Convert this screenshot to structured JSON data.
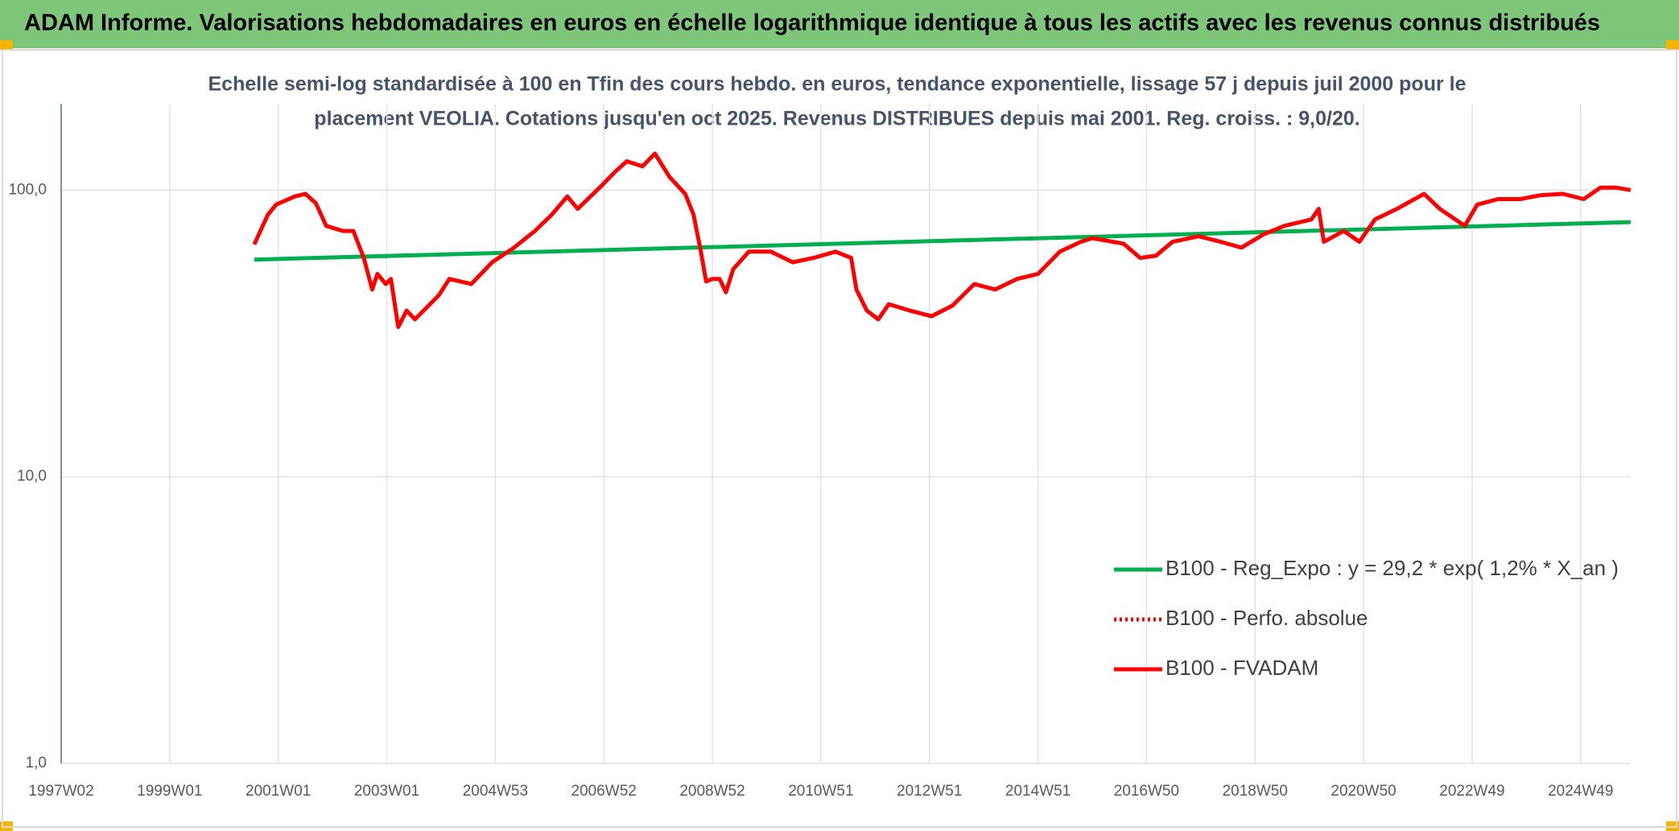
{
  "chart_data": {
    "type": "line",
    "title": "ADAM Informe. Valorisations hebdomadaires en euros en échelle logarithmique identique à tous les actifs avec les revenus connus distribués",
    "subtitle": [
      "Echelle semi-log standardisée à 100 en Tfin des cours hebdo. en euros, tendance exponentielle, lissage 57 j depuis juil 2000 pour le",
      "placement VEOLIA. Cotations jusqu'en oct 2025. Revenus DISTRIBUES depuis mai 2001. Reg. croiss. : 9,0/20."
    ],
    "yscale": "log",
    "ylim": [
      1,
      200
    ],
    "yticks": [
      {
        "value": 1,
        "label": "1,0"
      },
      {
        "value": 10,
        "label": "10,0"
      },
      {
        "value": 100,
        "label": "100,0"
      }
    ],
    "xlim": [
      0,
      1504
    ],
    "xticks": [
      {
        "value": 0,
        "label": "1997W02"
      },
      {
        "value": 104,
        "label": "1999W01"
      },
      {
        "value": 208,
        "label": "2001W01"
      },
      {
        "value": 312,
        "label": "2003W01"
      },
      {
        "value": 416,
        "label": "2004W53"
      },
      {
        "value": 520,
        "label": "2006W52"
      },
      {
        "value": 624,
        "label": "2008W52"
      },
      {
        "value": 728,
        "label": "2010W51"
      },
      {
        "value": 832,
        "label": "2012W51"
      },
      {
        "value": 936,
        "label": "2014W51"
      },
      {
        "value": 1040,
        "label": "2016W50"
      },
      {
        "value": 1144,
        "label": "2018W50"
      },
      {
        "value": 1248,
        "label": "2020W50"
      },
      {
        "value": 1352,
        "label": "2022W49"
      },
      {
        "value": 1456,
        "label": "2024W49"
      }
    ],
    "grid": true,
    "legend": "lower right",
    "series": [
      {
        "name": "B100 - Reg_Expo : y = 29,2 * exp( 1,2% *  X_an )",
        "color": "#00b050",
        "style": "solid",
        "x": [
          185,
          1504
        ],
        "values": [
          57.2,
          77.3
        ]
      },
      {
        "name": "B100 - Perfo. absolue",
        "color": "#ff0000",
        "style": "dotted",
        "x": [
          185,
          1504
        ],
        "values": [
          null,
          null
        ]
      },
      {
        "name": "B100 - FVADAM",
        "color": "#ff0000",
        "style": "solid",
        "x": [
          185,
          198,
          206,
          224,
          234,
          244,
          254,
          270,
          280,
          290,
          298,
          303,
          311,
          316,
          323,
          331,
          339,
          352,
          362,
          372,
          393,
          413,
          434,
          454,
          470,
          485,
          495,
          516,
          531,
          542,
          557,
          569,
          583,
          598,
          606,
          613,
          618,
          624,
          631,
          637,
          644,
          659,
          680,
          701,
          721,
          742,
          757,
          762,
          772,
          783,
          793,
          813,
          834,
          854,
          875,
          895,
          916,
          936,
          957,
          977,
          988,
          1018,
          1034,
          1049,
          1065,
          1090,
          1111,
          1131,
          1152,
          1172,
          1198,
          1205,
          1210,
          1229,
          1244,
          1259,
          1280,
          1306,
          1321,
          1336,
          1345,
          1357,
          1377,
          1398,
          1418,
          1439,
          1459,
          1475,
          1490,
          1504
        ],
        "values": [
          64.6,
          82,
          89,
          95,
          97,
          90,
          75,
          72,
          72,
          58,
          45,
          51,
          47,
          49,
          33.3,
          38,
          35.4,
          39.5,
          43,
          49,
          47,
          56,
          63,
          72,
          82,
          95,
          86,
          102,
          116,
          126,
          121,
          134,
          111,
          97,
          82,
          61,
          48,
          49,
          49,
          44,
          53,
          61,
          61,
          56,
          58,
          61,
          58,
          45,
          38,
          35.4,
          40,
          38,
          36.3,
          39.5,
          47,
          45,
          49,
          51,
          61,
          66,
          68,
          65,
          58,
          59,
          66,
          69,
          66,
          63,
          70,
          75,
          79,
          86,
          66,
          72,
          66,
          79,
          86,
          97,
          86,
          79,
          75,
          89,
          93,
          93,
          96,
          97,
          93,
          102,
          102,
          100
        ]
      }
    ]
  }
}
